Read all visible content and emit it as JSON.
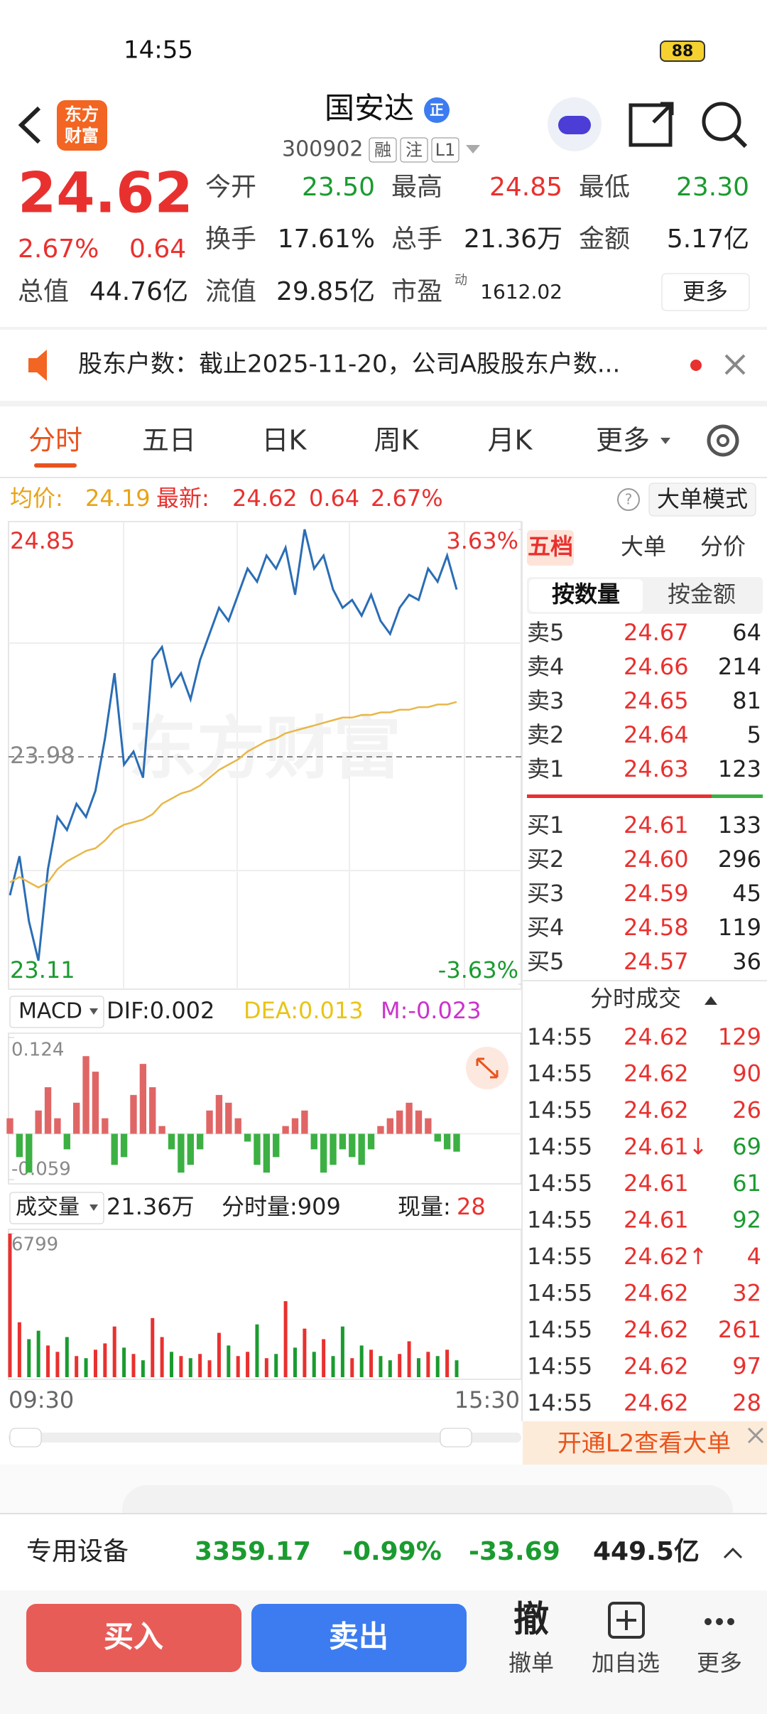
{
  "status": {
    "time": "14:55",
    "battery": "88"
  },
  "header": {
    "logo": [
      "东方",
      "财富"
    ],
    "title": "国安达",
    "badge": "正",
    "code": "300902",
    "tags": [
      "融",
      "注",
      "L1"
    ]
  },
  "quote": {
    "price": "24.62",
    "pct": "2.67%",
    "change": "0.64",
    "more": "更多",
    "pe_mark": "动",
    "rows": [
      [
        {
          "label": "今开",
          "value": "23.50",
          "color": "#1a9b2f"
        },
        {
          "label": "最高",
          "value": "24.85",
          "color": "#e8312f"
        },
        {
          "label": "最低",
          "value": "23.30",
          "color": "#1a9b2f"
        }
      ],
      [
        {
          "label": "换手",
          "value": "17.61%",
          "color": "#222222"
        },
        {
          "label": "总手",
          "value": "21.36万",
          "color": "#222222"
        },
        {
          "label": "金额",
          "value": "5.17亿",
          "color": "#222222"
        }
      ],
      [
        {
          "label": "总值",
          "value": "44.76亿",
          "color": "#222222"
        },
        {
          "label": "流值",
          "value": "29.85亿",
          "color": "#222222"
        },
        {
          "label": "市盈",
          "value": "1612.02",
          "color": "#222222"
        }
      ]
    ]
  },
  "notice": "股东户数：截止2025-11-20，公司A股股东户数...",
  "tabs": [
    "分时",
    "五日",
    "日K",
    "周K",
    "月K",
    "更多"
  ],
  "info": {
    "avg_label": "均价:",
    "avg": "24.19",
    "latest_label": "最新:",
    "latest": "24.62",
    "change": "0.64",
    "pct": "2.67%",
    "mode": "大单模式"
  },
  "watermark": "东方财富",
  "time_labels": [
    "09:30",
    "15:30"
  ],
  "macd": {
    "name": "MACD",
    "dif": "DIF:0.002",
    "dea": "DEA:0.013",
    "m": "M:-0.023"
  },
  "volume": {
    "name": "成交量",
    "total": "21.36万",
    "minute": "分时量:909",
    "now_label": "现量:",
    "now": "28"
  },
  "chart_data": [
    {
      "type": "line",
      "ylim": [
        23.11,
        24.85
      ],
      "yticks": [
        23.11,
        23.98,
        24.85
      ],
      "y2lim": [
        -3.63,
        3.63
      ],
      "y2ticks": [
        {
          "value": -3.63,
          "label": "-3.63%"
        },
        {
          "value": 3.63,
          "label": "3.63%"
        }
      ],
      "grid": true,
      "series": [
        {
          "color": "#2a6db5",
          "values": [
            23.45,
            23.6,
            23.35,
            23.2,
            23.55,
            23.75,
            23.7,
            23.8,
            23.75,
            23.85,
            24.05,
            24.3,
            23.95,
            24.0,
            23.9,
            24.35,
            24.4,
            24.25,
            24.3,
            24.2,
            24.35,
            24.45,
            24.55,
            24.5,
            24.6,
            24.7,
            24.65,
            24.75,
            24.7,
            24.78,
            24.6,
            24.85,
            24.7,
            24.75,
            24.62,
            24.55,
            24.58,
            24.52,
            24.6,
            24.5,
            24.45,
            24.55,
            24.6,
            24.58,
            24.7,
            24.65,
            24.75,
            24.62
          ]
        },
        {
          "color": "#e8b74a",
          "values": [
            23.5,
            23.52,
            23.5,
            23.48,
            23.5,
            23.55,
            23.58,
            23.6,
            23.62,
            23.63,
            23.66,
            23.7,
            23.72,
            23.73,
            23.74,
            23.76,
            23.8,
            23.82,
            23.84,
            23.85,
            23.87,
            23.9,
            23.93,
            23.95,
            23.97,
            24.0,
            24.02,
            24.04,
            24.05,
            24.07,
            24.08,
            24.09,
            24.1,
            24.11,
            24.12,
            24.13,
            24.13,
            24.14,
            24.14,
            24.15,
            24.15,
            24.16,
            24.16,
            24.17,
            24.17,
            24.18,
            24.18,
            24.19
          ]
        }
      ]
    },
    {
      "type": "bar",
      "ylim": [
        -0.059,
        0.124
      ],
      "yticks": [
        -0.059,
        0.124
      ],
      "up_color": "#e06666",
      "down_color": "#3cb043",
      "values": [
        0.02,
        -0.03,
        -0.05,
        0.03,
        0.06,
        0.02,
        -0.02,
        0.04,
        0.1,
        0.08,
        0.02,
        -0.04,
        -0.03,
        0.05,
        0.09,
        0.06,
        0.01,
        -0.02,
        -0.05,
        -0.04,
        -0.02,
        0.03,
        0.05,
        0.04,
        0.02,
        -0.01,
        -0.04,
        -0.05,
        -0.03,
        0.01,
        0.02,
        0.03,
        -0.02,
        -0.05,
        -0.04,
        -0.02,
        -0.03,
        -0.04,
        -0.02,
        0.01,
        0.02,
        0.03,
        0.04,
        0.03,
        0.02,
        -0.01,
        -0.02,
        -0.023
      ]
    },
    {
      "type": "bar",
      "ylim": [
        0,
        6799
      ],
      "yticks": [
        6799
      ],
      "up_color": "#e8312f",
      "down_color": "#1a9b2f",
      "values": [
        6799,
        2600,
        1800,
        2200,
        1500,
        1200,
        1900,
        1000,
        900,
        1300,
        1600,
        2400,
        1400,
        1100,
        800,
        2800,
        1900,
        1200,
        1000,
        900,
        1100,
        800,
        2100,
        1500,
        1000,
        1200,
        2500,
        900,
        1100,
        3600,
        1400,
        2300,
        1200,
        1800,
        1000,
        2400,
        900,
        1500,
        1300,
        1000,
        800,
        1100,
        1700,
        900,
        1200,
        1000,
        1300,
        800
      ]
    }
  ],
  "order_book": {
    "tabs": [
      "五档",
      "大单",
      "分价"
    ],
    "subtabs": [
      "按数量",
      "按金额"
    ],
    "asks": [
      {
        "label": "卖5",
        "price": "24.67",
        "vol": "64"
      },
      {
        "label": "卖4",
        "price": "24.66",
        "vol": "214"
      },
      {
        "label": "卖3",
        "price": "24.65",
        "vol": "81"
      },
      {
        "label": "卖2",
        "price": "24.64",
        "vol": "5"
      },
      {
        "label": "卖1",
        "price": "24.63",
        "vol": "123"
      }
    ],
    "bids": [
      {
        "label": "买1",
        "price": "24.61",
        "vol": "133"
      },
      {
        "label": "买2",
        "price": "24.60",
        "vol": "296"
      },
      {
        "label": "买3",
        "price": "24.59",
        "vol": "45"
      },
      {
        "label": "买4",
        "price": "24.58",
        "vol": "119"
      },
      {
        "label": "买5",
        "price": "24.57",
        "vol": "36"
      }
    ]
  },
  "trades": {
    "title": "分时成交",
    "rows": [
      {
        "time": "14:55",
        "price": "24.62",
        "vol": "129",
        "color": "#e8312f"
      },
      {
        "time": "14:55",
        "price": "24.62",
        "vol": "90",
        "color": "#e8312f"
      },
      {
        "time": "14:55",
        "price": "24.62",
        "vol": "26",
        "color": "#e8312f"
      },
      {
        "time": "14:55",
        "price": "24.61↓",
        "vol": "69",
        "color": "#1a9b2f"
      },
      {
        "time": "14:55",
        "price": "24.61",
        "vol": "61",
        "color": "#1a9b2f"
      },
      {
        "time": "14:55",
        "price": "24.61",
        "vol": "92",
        "color": "#1a9b2f"
      },
      {
        "time": "14:55",
        "price": "24.62↑",
        "vol": "4",
        "color": "#e8312f"
      },
      {
        "time": "14:55",
        "price": "24.62",
        "vol": "32",
        "color": "#e8312f"
      },
      {
        "time": "14:55",
        "price": "24.62",
        "vol": "261",
        "color": "#e8312f"
      },
      {
        "time": "14:55",
        "price": "24.62",
        "vol": "97",
        "color": "#e8312f"
      },
      {
        "time": "14:55",
        "price": "24.62",
        "vol": "28",
        "color": "#e8312f"
      }
    ]
  },
  "l2": "开通L2查看大单",
  "index_bar": {
    "name": "专用设备",
    "value": "3359.17",
    "pct": "-0.99%",
    "change": "-33.69",
    "amount": "449.5亿"
  },
  "actions": {
    "buy": "买入",
    "sell": "卖出",
    "cancel_icon": "撤",
    "cancel": "撤单",
    "watch": "加自选",
    "more": "更多"
  }
}
